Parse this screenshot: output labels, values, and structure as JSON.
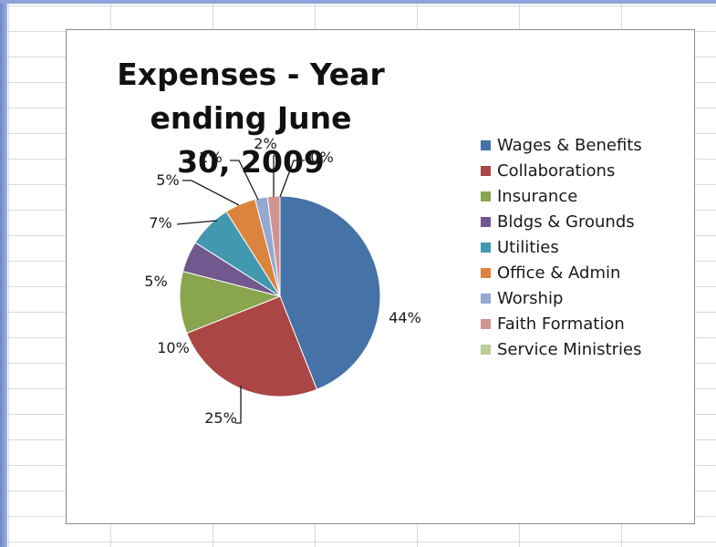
{
  "chart_data": {
    "type": "pie",
    "title": "Expenses - Year ending June 30, 2009",
    "title_lines": [
      "Expenses - Year ending June",
      "30, 2009"
    ],
    "legend_position": "right",
    "slices": [
      {
        "name": "Wages & Benefits",
        "value": 44,
        "label": "44%",
        "color": "#4572a7"
      },
      {
        "name": "Collaborations",
        "value": 25,
        "label": "25%",
        "color": "#aa4643"
      },
      {
        "name": "Insurance",
        "value": 10,
        "label": "10%",
        "color": "#89a54e"
      },
      {
        "name": "Bldgs & Grounds",
        "value": 5,
        "label": "5%",
        "color": "#71588f"
      },
      {
        "name": "Utilities",
        "value": 7,
        "label": "7%",
        "color": "#4198af"
      },
      {
        "name": "Office & Admin",
        "value": 5,
        "label": "5%",
        "color": "#db843d"
      },
      {
        "name": "Worship",
        "value": 2,
        "label": "2%",
        "color": "#93a9cf"
      },
      {
        "name": "Faith Formation",
        "value": 2,
        "label": "2%",
        "color": "#d19392"
      },
      {
        "name": "Service Ministries",
        "value": 0,
        "label": "0%",
        "color": "#b9cd96"
      }
    ]
  }
}
